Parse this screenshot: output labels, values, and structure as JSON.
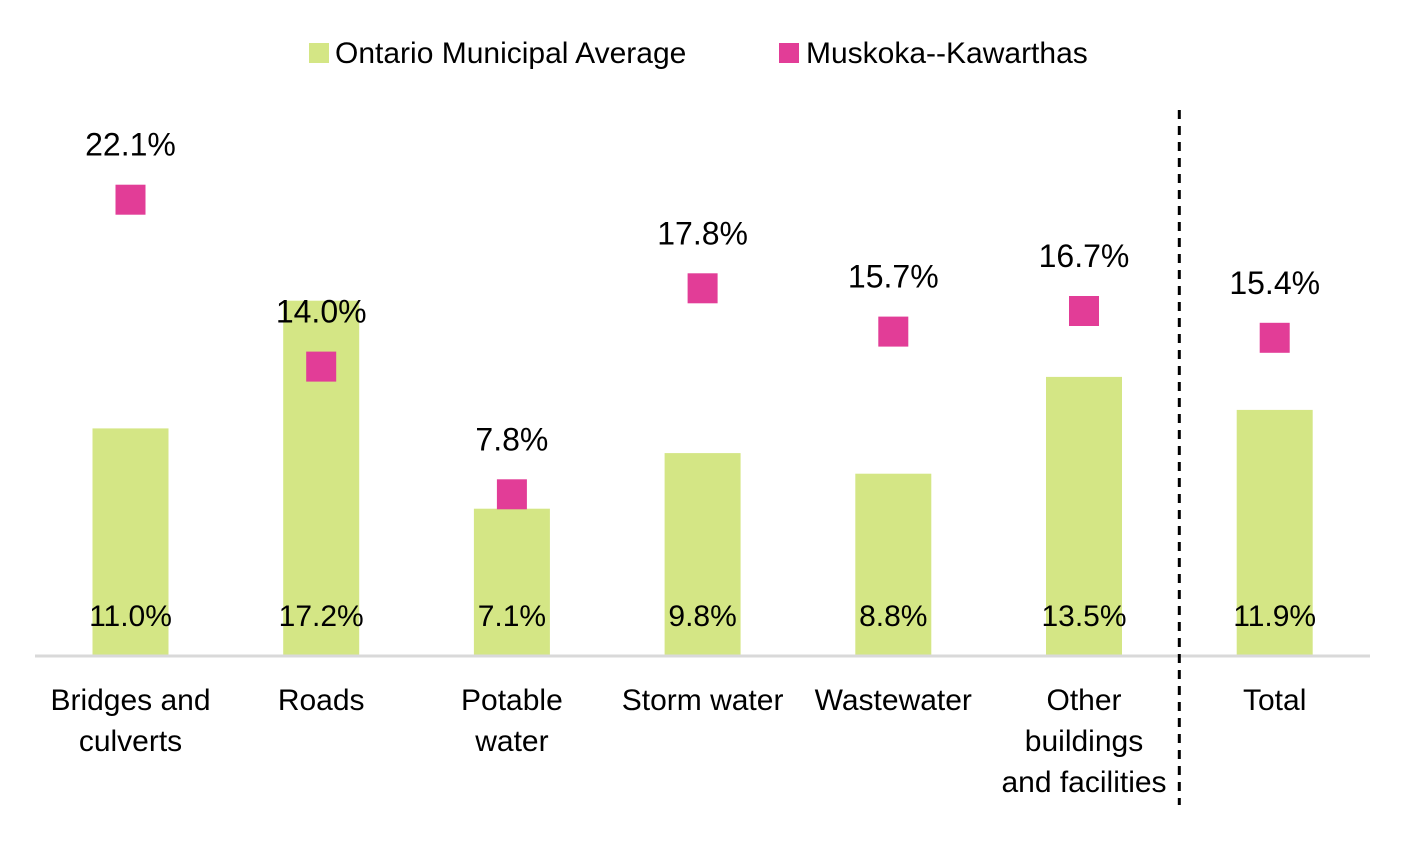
{
  "chart_data": {
    "type": "bar",
    "categories": [
      "Bridges and culverts",
      "Roads",
      "Potable water",
      "Storm water",
      "Wastewater",
      "Other buildings and facilities",
      "Total"
    ],
    "category_lines": [
      [
        "Bridges and",
        "culverts"
      ],
      [
        "Roads"
      ],
      [
        "Potable",
        "water"
      ],
      [
        "Storm water"
      ],
      [
        "Wastewater"
      ],
      [
        "Other",
        "buildings",
        "and facilities"
      ],
      [
        "Total"
      ]
    ],
    "series": [
      {
        "name": "Ontario Municipal Average",
        "mark": "bar",
        "color": "#d4e685",
        "values": [
          11.0,
          17.2,
          7.1,
          9.8,
          8.8,
          13.5,
          11.9
        ],
        "labels": [
          "11.0%",
          "17.2%",
          "7.1%",
          "9.8%",
          "8.8%",
          "13.5%",
          "11.9%"
        ]
      },
      {
        "name": "Muskoka--Kawarthas",
        "mark": "square-marker",
        "color": "#e23d97",
        "values": [
          22.1,
          14.0,
          7.8,
          17.8,
          15.7,
          16.7,
          15.4
        ],
        "labels": [
          "22.1%",
          "14.0%",
          "7.8%",
          "17.8%",
          "15.7%",
          "16.7%",
          "15.4%"
        ]
      }
    ],
    "ylim": [
      0,
      25
    ],
    "grid": false,
    "legend_position": "top-center",
    "separator_before": "Total"
  }
}
